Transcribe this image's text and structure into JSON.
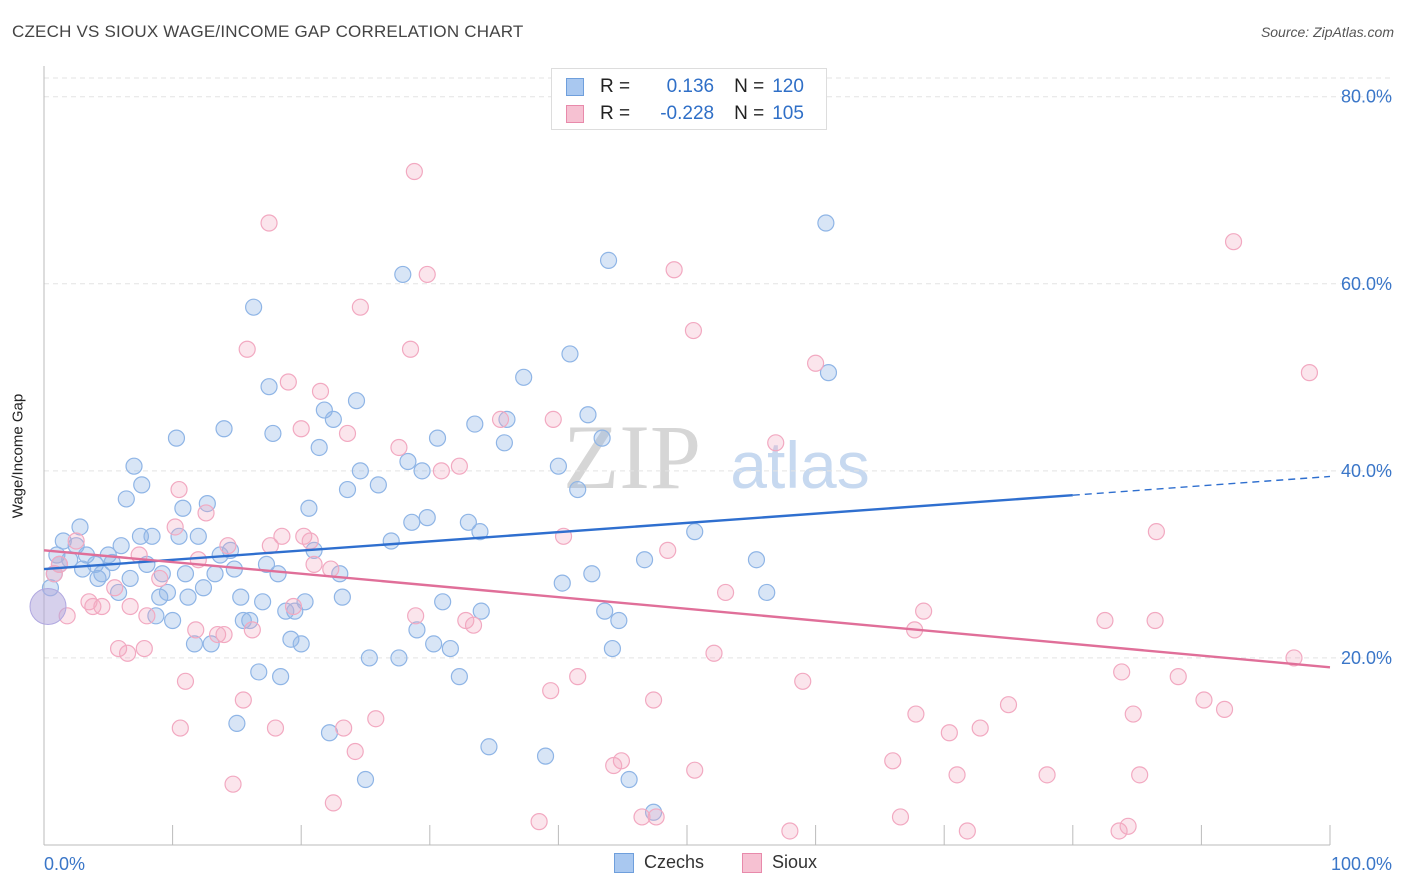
{
  "title": "CZECH VS SIOUX WAGE/INCOME GAP CORRELATION CHART",
  "source": "Source: ZipAtlas.com",
  "watermark": {
    "zip": "ZIP",
    "atlas": "atlas"
  },
  "legend": {
    "rows": [
      {
        "r_label": "R =",
        "r_value": "0.136",
        "n_label": "N =",
        "n_value": "120",
        "color": "#6f9fdc",
        "fill": "#a9c8f0"
      },
      {
        "r_label": "R =",
        "r_value": "-0.228",
        "n_label": "N =",
        "n_value": "105",
        "color": "#e88aab",
        "fill": "#f6c1d2"
      }
    ]
  },
  "bottom_legend": [
    {
      "label": "Czechs",
      "color": "#6f9fdc",
      "fill": "#a9c8f0"
    },
    {
      "label": "Sioux",
      "color": "#e88aab",
      "fill": "#f6c1d2"
    }
  ],
  "chart_data": {
    "type": "scatter",
    "xlabel": "",
    "ylabel": "Wage/Income Gap",
    "xlim": [
      0,
      100
    ],
    "ylim": [
      0,
      82
    ],
    "x_tick_labels": [
      "0.0%",
      "100.0%"
    ],
    "y_ticks": [
      20,
      40,
      60,
      80
    ],
    "y_tick_labels": [
      "20.0%",
      "40.0%",
      "60.0%",
      "80.0%"
    ],
    "grid": true,
    "legend_position": "top-center",
    "series": [
      {
        "name": "Czechs",
        "color": "#3b78d0",
        "point_color": "#8fb5e6",
        "trend": {
          "x0": 0,
          "y0": 29.5,
          "x1": 80,
          "y1": 37.4,
          "dash_to_x": 100,
          "dash_to_y": 39.4
        },
        "points": [
          [
            0.5,
            27.5
          ],
          [
            0.8,
            29
          ],
          [
            1,
            31
          ],
          [
            1.2,
            30
          ],
          [
            1.5,
            32.5
          ],
          [
            2,
            30.5
          ],
          [
            2.5,
            32
          ],
          [
            2.8,
            34
          ],
          [
            3,
            29.5
          ],
          [
            3.3,
            31
          ],
          [
            4,
            30
          ],
          [
            4.2,
            28.5
          ],
          [
            4.5,
            29
          ],
          [
            5,
            31
          ],
          [
            5.3,
            30.2
          ],
          [
            5.8,
            27
          ],
          [
            6,
            32
          ],
          [
            6.4,
            37
          ],
          [
            6.7,
            28.5
          ],
          [
            7,
            40.5
          ],
          [
            7.5,
            33
          ],
          [
            7.6,
            38.5
          ],
          [
            8,
            30
          ],
          [
            8.4,
            33
          ],
          [
            8.7,
            24.5
          ],
          [
            9,
            26.5
          ],
          [
            9.2,
            29
          ],
          [
            9.6,
            27
          ],
          [
            10,
            24
          ],
          [
            10.3,
            43.5
          ],
          [
            10.5,
            33
          ],
          [
            10.8,
            36
          ],
          [
            11,
            29
          ],
          [
            11.2,
            26.5
          ],
          [
            11.7,
            21.5
          ],
          [
            12,
            33
          ],
          [
            12.4,
            27.5
          ],
          [
            12.7,
            36.5
          ],
          [
            13,
            21.5
          ],
          [
            13.3,
            29
          ],
          [
            13.7,
            31
          ],
          [
            14,
            44.5
          ],
          [
            14.5,
            31.5
          ],
          [
            14.8,
            29.5
          ],
          [
            15,
            13
          ],
          [
            15.3,
            26.5
          ],
          [
            15.5,
            24
          ],
          [
            16,
            24
          ],
          [
            16.3,
            57.5
          ],
          [
            16.7,
            18.5
          ],
          [
            17,
            26
          ],
          [
            17.3,
            30
          ],
          [
            17.5,
            49
          ],
          [
            17.8,
            44
          ],
          [
            18.2,
            29
          ],
          [
            18.4,
            18
          ],
          [
            18.8,
            25
          ],
          [
            19.2,
            22
          ],
          [
            19.5,
            25
          ],
          [
            20,
            21.5
          ],
          [
            20.3,
            26
          ],
          [
            20.6,
            36
          ],
          [
            21,
            31.5
          ],
          [
            21.4,
            42.5
          ],
          [
            21.8,
            46.5
          ],
          [
            22.2,
            12
          ],
          [
            22.5,
            45.5
          ],
          [
            23,
            29
          ],
          [
            23.2,
            26.5
          ],
          [
            23.6,
            38
          ],
          [
            24.3,
            47.5
          ],
          [
            24.6,
            40
          ],
          [
            25,
            7
          ],
          [
            25.3,
            20
          ],
          [
            26,
            38.5
          ],
          [
            27,
            32.5
          ],
          [
            27.6,
            20
          ],
          [
            27.9,
            61
          ],
          [
            28.3,
            41
          ],
          [
            28.6,
            34.5
          ],
          [
            29,
            23
          ],
          [
            29.4,
            40
          ],
          [
            29.8,
            35
          ],
          [
            30.3,
            21.5
          ],
          [
            30.6,
            43.5
          ],
          [
            31,
            26
          ],
          [
            31.6,
            21
          ],
          [
            32.3,
            18
          ],
          [
            33,
            34.5
          ],
          [
            33.5,
            45
          ],
          [
            33.9,
            33.5
          ],
          [
            34,
            25
          ],
          [
            34.6,
            10.5
          ],
          [
            35.8,
            43
          ],
          [
            36,
            45.5
          ],
          [
            37.3,
            50
          ],
          [
            39,
            9.5
          ],
          [
            40,
            40.5
          ],
          [
            40.3,
            28
          ],
          [
            40.9,
            52.5
          ],
          [
            41.5,
            38
          ],
          [
            42.3,
            46
          ],
          [
            42.6,
            29
          ],
          [
            43.4,
            43.5
          ],
          [
            43.6,
            25
          ],
          [
            43.9,
            62.5
          ],
          [
            44.2,
            21
          ],
          [
            44.7,
            24
          ],
          [
            45.5,
            7
          ],
          [
            46.7,
            30.5
          ],
          [
            50.6,
            33.5
          ],
          [
            55.4,
            30.5
          ],
          [
            56.2,
            27
          ],
          [
            60.8,
            66.5
          ],
          [
            61,
            50.5
          ],
          [
            47.4,
            3.5
          ]
        ],
        "big_point": [
          0,
          25.5
        ]
      },
      {
        "name": "Sioux",
        "color": "#e06f99",
        "point_color": "#f2a9c1",
        "trend": {
          "x0": 0,
          "y0": 31.5,
          "x1": 100,
          "y1": 19
        },
        "points": [
          [
            0.8,
            29
          ],
          [
            1.2,
            30
          ],
          [
            1.8,
            24.5
          ],
          [
            2.5,
            32.5
          ],
          [
            3.5,
            26
          ],
          [
            3.8,
            25.5
          ],
          [
            4.5,
            25.5
          ],
          [
            5.5,
            27.5
          ],
          [
            5.8,
            21
          ],
          [
            6.5,
            20.5
          ],
          [
            6.7,
            25.5
          ],
          [
            7.4,
            31
          ],
          [
            7.8,
            21
          ],
          [
            8,
            24.5
          ],
          [
            9,
            28.5
          ],
          [
            10.2,
            34
          ],
          [
            10.5,
            38
          ],
          [
            10.6,
            12.5
          ],
          [
            11,
            17.5
          ],
          [
            11.8,
            23
          ],
          [
            12,
            30.5
          ],
          [
            12.6,
            35.5
          ],
          [
            13.5,
            22.5
          ],
          [
            14,
            22.5
          ],
          [
            14.3,
            32
          ],
          [
            14.7,
            6.5
          ],
          [
            15.5,
            15.5
          ],
          [
            15.8,
            53
          ],
          [
            16.2,
            23
          ],
          [
            17.5,
            66.5
          ],
          [
            17.6,
            32
          ],
          [
            18,
            12.5
          ],
          [
            18.5,
            33
          ],
          [
            19,
            49.5
          ],
          [
            19.4,
            25.5
          ],
          [
            20,
            44.5
          ],
          [
            20.2,
            33
          ],
          [
            20.7,
            32.5
          ],
          [
            21,
            30
          ],
          [
            21.5,
            48.5
          ],
          [
            22.3,
            29.5
          ],
          [
            22.5,
            4.5
          ],
          [
            23.3,
            12.5
          ],
          [
            23.6,
            44
          ],
          [
            24.2,
            10
          ],
          [
            24.6,
            57.5
          ],
          [
            25.8,
            13.5
          ],
          [
            27.6,
            42.5
          ],
          [
            28.5,
            53
          ],
          [
            28.8,
            72
          ],
          [
            28.9,
            24.5
          ],
          [
            29.8,
            61
          ],
          [
            30.9,
            40
          ],
          [
            32.3,
            40.5
          ],
          [
            32.8,
            24
          ],
          [
            33.4,
            23.5
          ],
          [
            35.5,
            45.5
          ],
          [
            38.5,
            2.5
          ],
          [
            39.4,
            16.5
          ],
          [
            39.6,
            45.5
          ],
          [
            40.4,
            33
          ],
          [
            41.5,
            18
          ],
          [
            44.3,
            8.5
          ],
          [
            44.9,
            9
          ],
          [
            46.5,
            3
          ],
          [
            47.6,
            3
          ],
          [
            47.4,
            15.5
          ],
          [
            48.5,
            31.5
          ],
          [
            49,
            61.5
          ],
          [
            50.5,
            55
          ],
          [
            50.6,
            8
          ],
          [
            52.1,
            20.5
          ],
          [
            53,
            27
          ],
          [
            56.9,
            43
          ],
          [
            58,
            1.5
          ],
          [
            59,
            17.5
          ],
          [
            60,
            51.5
          ],
          [
            66,
            9
          ],
          [
            66.6,
            3
          ],
          [
            67.7,
            23
          ],
          [
            67.8,
            14
          ],
          [
            68.4,
            25
          ],
          [
            70.4,
            12
          ],
          [
            71,
            7.5
          ],
          [
            71.8,
            1.5
          ],
          [
            72.8,
            12.5
          ],
          [
            75,
            15
          ],
          [
            78,
            7.5
          ],
          [
            82.5,
            24
          ],
          [
            83.6,
            1.5
          ],
          [
            83.8,
            18.5
          ],
          [
            84.3,
            2
          ],
          [
            84.7,
            14
          ],
          [
            85.2,
            7.5
          ],
          [
            86.4,
            24
          ],
          [
            86.5,
            33.5
          ],
          [
            88.2,
            18
          ],
          [
            90.2,
            15.5
          ],
          [
            91.8,
            14.5
          ],
          [
            92.5,
            64.5
          ],
          [
            97.2,
            20
          ],
          [
            98.4,
            50.5
          ]
        ]
      }
    ]
  }
}
